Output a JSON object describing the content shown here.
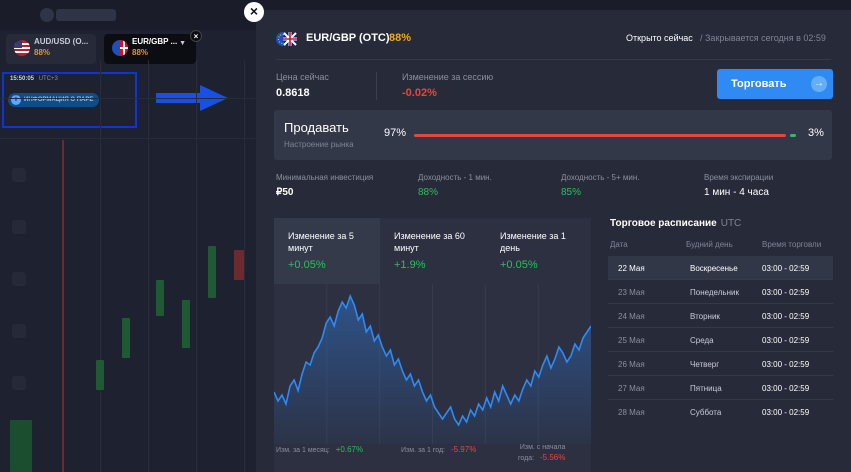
{
  "background": {
    "tabs": [
      {
        "name": "AUD/USD (O...",
        "pct": "88%"
      },
      {
        "name": "EUR/GBP ...",
        "pct": "88%"
      }
    ],
    "time": "15:50:05",
    "timezone": "UTC+3",
    "info_pill": "ИНФОРМАЦИЯ О ПАРЕ"
  },
  "close_label": "×",
  "header": {
    "asset": "EUR/GBP (OTC)",
    "payout": "88%",
    "status": "Открыто сейчас",
    "closes": "/ Закрывается сегодня в 02:59"
  },
  "price": {
    "label": "Цена сейчас",
    "value": "0.8618"
  },
  "session": {
    "label": "Изменение за сессию",
    "value": "-0.02%"
  },
  "trade_button": "Торговать",
  "sentiment": {
    "title": "Продавать",
    "subtitle": "Настроение рынка",
    "sell_pct": "97%",
    "buy_pct": "3%",
    "sell_fraction": 0.97
  },
  "stats": [
    {
      "label": "Минимальная инвестиция",
      "value": "₽50"
    },
    {
      "label": "Доходность - 1 мин.",
      "value": "88%"
    },
    {
      "label": "Доходность - 5+ мин.",
      "value": "85%"
    },
    {
      "label": "Время экспирации",
      "value": "1 мин - 4 часа"
    }
  ],
  "change_tabs": [
    {
      "label": "Изменение за 5 минут",
      "value": "+0.05%"
    },
    {
      "label": "Изменение за 60 минут",
      "value": "+1.9%"
    },
    {
      "label": "Изменение за 1 день",
      "value": "+0.05%"
    }
  ],
  "footer": [
    {
      "label": "Изм. за 1 месяц:",
      "value": "+0.67%"
    },
    {
      "label": "Изм. за 1 год:",
      "value": "-5.97%"
    },
    {
      "label_line1": "Изм. с начала",
      "label_line2": "года:",
      "value": "-5.56%"
    }
  ],
  "schedule": {
    "title": "Торговое расписание",
    "tz": "UTC",
    "headers": [
      "Дата",
      "Будний день",
      "Время торговли"
    ],
    "rows": [
      {
        "date": "22 Мая",
        "day": "Воскресенье",
        "time": "03:00 - 02:59"
      },
      {
        "date": "23 Мая",
        "day": "Понедельник",
        "time": "03:00 - 02:59"
      },
      {
        "date": "24 Мая",
        "day": "Вторник",
        "time": "03:00 - 02:59"
      },
      {
        "date": "25 Мая",
        "day": "Среда",
        "time": "03:00 - 02:59"
      },
      {
        "date": "26 Мая",
        "day": "Четверг",
        "time": "03:00 - 02:59"
      },
      {
        "date": "27 Мая",
        "day": "Пятница",
        "time": "03:00 - 02:59"
      },
      {
        "date": "28 Мая",
        "day": "Суббота",
        "time": "03:00 - 02:59"
      }
    ]
  },
  "chart_data": {
    "type": "area",
    "x": [
      0,
      1,
      2,
      3,
      4,
      5,
      6,
      7,
      8,
      9,
      10,
      11,
      12,
      13,
      14,
      15,
      16,
      17,
      18,
      19,
      20,
      21,
      22,
      23,
      24,
      25,
      26,
      27,
      28,
      29,
      30,
      31,
      32,
      33,
      34,
      35,
      36,
      37,
      38,
      39,
      40,
      41,
      42,
      43,
      44,
      45,
      46,
      47,
      48,
      49,
      50,
      51,
      52,
      53,
      54,
      55,
      56,
      57,
      58,
      59,
      60,
      61,
      62,
      63,
      64,
      65,
      66,
      67,
      68,
      69,
      70,
      71,
      72,
      73,
      74,
      75,
      76,
      77,
      78,
      79
    ],
    "values": [
      32,
      26,
      30,
      24,
      36,
      40,
      33,
      44,
      52,
      50,
      58,
      62,
      68,
      78,
      82,
      76,
      86,
      92,
      88,
      96,
      90,
      80,
      84,
      72,
      76,
      66,
      70,
      62,
      56,
      60,
      50,
      54,
      46,
      40,
      44,
      36,
      40,
      32,
      26,
      30,
      22,
      18,
      14,
      18,
      22,
      14,
      10,
      16,
      12,
      20,
      16,
      24,
      20,
      28,
      22,
      32,
      26,
      36,
      30,
      24,
      30,
      26,
      34,
      40,
      36,
      46,
      42,
      50,
      56,
      48,
      54,
      62,
      58,
      52,
      56,
      64,
      60,
      68,
      72,
      76
    ],
    "ylim": [
      0,
      100
    ],
    "color": "#2f8bf3"
  }
}
